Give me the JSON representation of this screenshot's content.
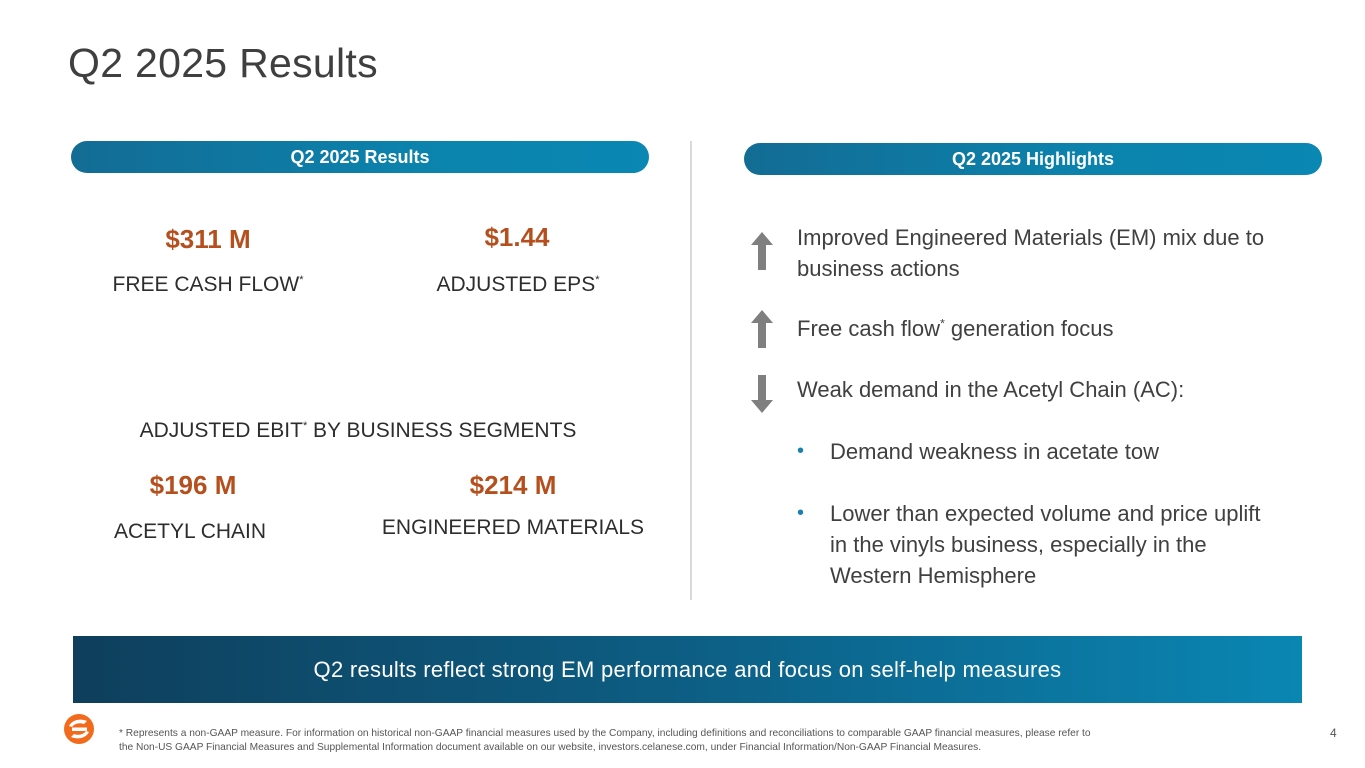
{
  "slide": {
    "title": "Q2 2025 Results",
    "page_number": "4"
  },
  "left_panel": {
    "header": "Q2 2025 Results",
    "metrics": [
      {
        "value": "$311 M",
        "label": "FREE CASH FLOW",
        "footnote_mark": "*"
      },
      {
        "value": "$1.44",
        "label": "ADJUSTED EPS",
        "footnote_mark": "*"
      }
    ],
    "segments_heading_a": "ADJUSTED EBIT",
    "segments_heading_mark": "*",
    "segments_heading_b": " BY BUSINESS SEGMENTS",
    "segments": [
      {
        "value": "$196 M",
        "label": "ACETYL CHAIN"
      },
      {
        "value": "$214 M",
        "label": "ENGINEERED MATERIALS"
      }
    ]
  },
  "right_panel": {
    "header": "Q2 2025 Highlights",
    "highlights": [
      {
        "direction": "up",
        "icon": "arrow-up-icon",
        "text_line1": "Improved Engineered Materials (EM) mix due to",
        "text_line2": "business actions"
      },
      {
        "direction": "up",
        "icon": "arrow-up-icon",
        "text_a": "Free cash flow",
        "mark": "*",
        "text_b": " generation focus"
      },
      {
        "direction": "down",
        "icon": "arrow-down-icon",
        "text": "Weak demand in the Acetyl Chain (AC):"
      }
    ],
    "bullets": [
      {
        "lines": [
          "Demand weakness in acetate tow"
        ]
      },
      {
        "lines": [
          "Lower than expected volume and price uplift",
          "in the vinyls business, especially in the",
          "Western Hemisphere"
        ]
      }
    ],
    "bullet_glyph": "•"
  },
  "banner": {
    "text": "Q2 results reflect strong EM performance and focus on self-help measures"
  },
  "footer": {
    "footnote_line1": "* Represents a non-GAAP measure. For information on historical non-GAAP financial measures used by the Company, including definitions and reconciliations to comparable GAAP financial measures, please refer to",
    "footnote_line2": "the Non-US GAAP Financial Measures and Supplemental Information document available on our website, investors.celanese.com, under Financial Information/Non-GAAP Financial Measures."
  },
  "colors": {
    "accent_orange": "#b5501e",
    "pill_blue": "#0b83ad",
    "banner_dark": "#0e3f5c",
    "arrow_gray": "#7f7f7f",
    "logo_orange": "#f26b1d"
  }
}
